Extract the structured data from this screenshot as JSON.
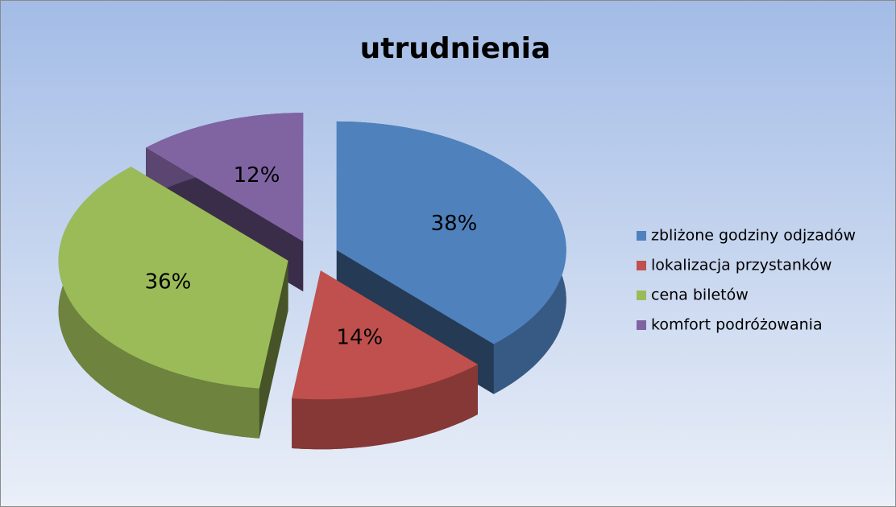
{
  "chart_data": {
    "type": "pie3d",
    "title": "utrudnienia",
    "categories": [
      "zbliżone godziny odjzadów",
      "lokalizacja przystanków",
      "cena biletów",
      "komfort podróżowania"
    ],
    "values": [
      38,
      14,
      36,
      12
    ],
    "value_labels": [
      "38%",
      "14%",
      "36%",
      "12%"
    ],
    "colors": [
      "#4f81bd",
      "#c0504d",
      "#9bbb59",
      "#8064a2"
    ],
    "legend": "right"
  }
}
